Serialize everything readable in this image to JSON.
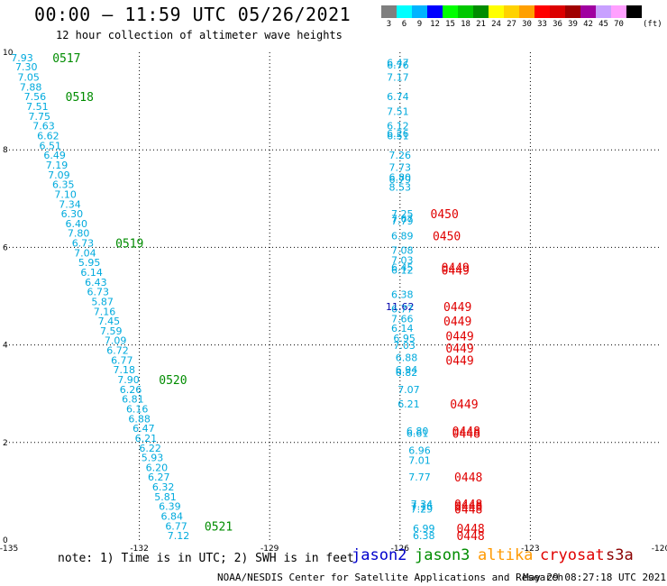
{
  "header": {
    "title": "00:00 – 11:59 UTC 05/26/2021",
    "subtitle": "12 hour collection of altimeter wave heights"
  },
  "legend": {
    "unit": "(ft)",
    "swatches": [
      {
        "color": "#7f7f7f",
        "label": "3"
      },
      {
        "color": "#00ffff",
        "label": "6"
      },
      {
        "color": "#00b4ff",
        "label": "9"
      },
      {
        "color": "#0000ff",
        "label": "12"
      },
      {
        "color": "#00ff00",
        "label": "15"
      },
      {
        "color": "#00c800",
        "label": "18"
      },
      {
        "color": "#008c00",
        "label": "21"
      },
      {
        "color": "#ffff00",
        "label": "24"
      },
      {
        "color": "#ffd200",
        "label": "27"
      },
      {
        "color": "#ffa000",
        "label": "30"
      },
      {
        "color": "#ff0000",
        "label": "33"
      },
      {
        "color": "#dc0000",
        "label": "36"
      },
      {
        "color": "#a00000",
        "label": "39"
      },
      {
        "color": "#a000a0",
        "label": "42"
      },
      {
        "color": "#c8a0ff",
        "label": "45"
      },
      {
        "color": "#ffa0ff",
        "label": "70"
      },
      {
        "color": "#000000",
        "label": ""
      }
    ]
  },
  "map": {
    "lon_range": [
      -135,
      -120
    ],
    "lat_range": [
      0,
      10
    ],
    "x_ticks": [
      -135,
      -132,
      -129,
      -126,
      -123,
      -120
    ],
    "y_ticks": [
      0,
      2,
      4,
      6,
      8,
      10
    ],
    "colors": {
      "jason3": "#008c00",
      "cryosat": "#e00000",
      "value": "#00aadd",
      "value_dark": "#0000aa"
    }
  },
  "track_a": {
    "satellite": "jason3",
    "values": [
      {
        "lon": -134.7,
        "lat": 9.89,
        "text": "7.93"
      },
      {
        "lon": -134.6,
        "lat": 9.7,
        "text": "7.30"
      },
      {
        "lon": -134.55,
        "lat": 9.49,
        "text": "7.05"
      },
      {
        "lon": -134.5,
        "lat": 9.29,
        "text": "7.88"
      },
      {
        "lon": -134.4,
        "lat": 9.09,
        "text": "7.56"
      },
      {
        "lon": -134.35,
        "lat": 8.89,
        "text": "7.51"
      },
      {
        "lon": -134.3,
        "lat": 8.69,
        "text": "7.75"
      },
      {
        "lon": -134.2,
        "lat": 8.49,
        "text": "7.63"
      },
      {
        "lon": -134.1,
        "lat": 8.29,
        "text": "6.62"
      },
      {
        "lon": -134.05,
        "lat": 8.09,
        "text": "6.51"
      },
      {
        "lon": -133.95,
        "lat": 7.89,
        "text": "6.49"
      },
      {
        "lon": -133.9,
        "lat": 7.69,
        "text": "7.19"
      },
      {
        "lon": -133.85,
        "lat": 7.49,
        "text": "7.09"
      },
      {
        "lon": -133.75,
        "lat": 7.29,
        "text": "6.35"
      },
      {
        "lon": -133.7,
        "lat": 7.09,
        "text": "7.10"
      },
      {
        "lon": -133.6,
        "lat": 6.89,
        "text": "7.34"
      },
      {
        "lon": -133.55,
        "lat": 6.69,
        "text": "6.30"
      },
      {
        "lon": -133.45,
        "lat": 6.49,
        "text": "6.40"
      },
      {
        "lon": -133.4,
        "lat": 6.29,
        "text": "7.80"
      },
      {
        "lon": -133.3,
        "lat": 6.09,
        "text": "6.73"
      },
      {
        "lon": -133.25,
        "lat": 5.89,
        "text": "7.04"
      },
      {
        "lon": -133.15,
        "lat": 5.69,
        "text": "5.95"
      },
      {
        "lon": -133.1,
        "lat": 5.49,
        "text": "6.14"
      },
      {
        "lon": -133.0,
        "lat": 5.29,
        "text": "6.43"
      },
      {
        "lon": -132.95,
        "lat": 5.09,
        "text": "6.73"
      },
      {
        "lon": -132.85,
        "lat": 4.89,
        "text": "5.87"
      },
      {
        "lon": -132.8,
        "lat": 4.69,
        "text": "7.16"
      },
      {
        "lon": -132.7,
        "lat": 4.49,
        "text": "7.45"
      },
      {
        "lon": -132.65,
        "lat": 4.29,
        "text": "7.59"
      },
      {
        "lon": -132.55,
        "lat": 4.09,
        "text": "7.09"
      },
      {
        "lon": -132.5,
        "lat": 3.89,
        "text": "6.72"
      },
      {
        "lon": -132.4,
        "lat": 3.69,
        "text": "6.77"
      },
      {
        "lon": -132.35,
        "lat": 3.49,
        "text": "7.18"
      },
      {
        "lon": -132.25,
        "lat": 3.29,
        "text": "7.90"
      },
      {
        "lon": -132.2,
        "lat": 3.09,
        "text": "6.26"
      },
      {
        "lon": -132.15,
        "lat": 2.89,
        "text": "6.81"
      },
      {
        "lon": -132.05,
        "lat": 2.69,
        "text": "6.16"
      },
      {
        "lon": -132.0,
        "lat": 2.49,
        "text": "6.88"
      },
      {
        "lon": -131.9,
        "lat": 2.29,
        "text": "6.47"
      },
      {
        "lon": -131.85,
        "lat": 2.09,
        "text": "6.21"
      },
      {
        "lon": -131.75,
        "lat": 1.89,
        "text": "6.22"
      },
      {
        "lon": -131.7,
        "lat": 1.69,
        "text": "5.93"
      },
      {
        "lon": -131.6,
        "lat": 1.49,
        "text": "6.20"
      },
      {
        "lon": -131.55,
        "lat": 1.29,
        "text": "6.27"
      },
      {
        "lon": -131.45,
        "lat": 1.09,
        "text": "6.32"
      },
      {
        "lon": -131.4,
        "lat": 0.89,
        "text": "5.81"
      },
      {
        "lon": -131.3,
        "lat": 0.69,
        "text": "6.39"
      },
      {
        "lon": -131.25,
        "lat": 0.49,
        "text": "6.84"
      },
      {
        "lon": -131.15,
        "lat": 0.29,
        "text": "6.77"
      },
      {
        "lon": -131.1,
        "lat": 0.09,
        "text": "7.12"
      }
    ],
    "times": [
      {
        "lon": -134.0,
        "lat": 9.89,
        "text": "0517"
      },
      {
        "lon": -133.7,
        "lat": 9.09,
        "text": "0518"
      },
      {
        "lon": -132.55,
        "lat": 6.09,
        "text": "0519"
      },
      {
        "lon": -131.55,
        "lat": 3.29,
        "text": "0520"
      },
      {
        "lon": -130.5,
        "lat": 0.29,
        "text": "0521"
      }
    ]
  },
  "track_b": {
    "satellite": "cryosat",
    "values": [
      {
        "lon": -126.05,
        "lat": 9.79,
        "text": "6.47"
      },
      {
        "lon": -126.05,
        "lat": 9.74,
        "text": "6.76"
      },
      {
        "lon": -126.05,
        "lat": 9.49,
        "text": "7.17"
      },
      {
        "lon": -126.05,
        "lat": 9.09,
        "text": "6.74"
      },
      {
        "lon": -126.05,
        "lat": 8.79,
        "text": "7.51"
      },
      {
        "lon": -126.05,
        "lat": 8.49,
        "text": "6.12"
      },
      {
        "lon": -126.05,
        "lat": 8.34,
        "text": "6.26"
      },
      {
        "lon": -126.05,
        "lat": 8.29,
        "text": "6.51"
      },
      {
        "lon": -126.0,
        "lat": 7.89,
        "text": "7.26"
      },
      {
        "lon": -126.0,
        "lat": 7.64,
        "text": "7.73"
      },
      {
        "lon": -126.0,
        "lat": 7.44,
        "text": "6.80"
      },
      {
        "lon": -126.0,
        "lat": 7.39,
        "text": "6.79"
      },
      {
        "lon": -126.0,
        "lat": 7.24,
        "text": "8.53"
      },
      {
        "lon": -125.95,
        "lat": 6.69,
        "text": "7.25"
      },
      {
        "lon": -125.95,
        "lat": 6.59,
        "text": "7.67"
      },
      {
        "lon": -125.95,
        "lat": 6.54,
        "text": "7.79"
      },
      {
        "lon": -125.95,
        "lat": 6.24,
        "text": "6.89"
      },
      {
        "lon": -125.95,
        "lat": 5.94,
        "text": "7.08"
      },
      {
        "lon": -125.95,
        "lat": 5.74,
        "text": "7.03"
      },
      {
        "lon": -125.95,
        "lat": 5.59,
        "text": "6.45"
      },
      {
        "lon": -125.95,
        "lat": 5.54,
        "text": "6.12"
      },
      {
        "lon": -125.95,
        "lat": 5.04,
        "text": "6.38"
      },
      {
        "lon": -126.0,
        "lat": 4.79,
        "text": "11.62",
        "dark": true
      },
      {
        "lon": -125.95,
        "lat": 4.74,
        "text": "6.77"
      },
      {
        "lon": -125.95,
        "lat": 4.54,
        "text": "7.66"
      },
      {
        "lon": -125.95,
        "lat": 4.34,
        "text": "6.14"
      },
      {
        "lon": -125.9,
        "lat": 4.14,
        "text": "6.95"
      },
      {
        "lon": -125.9,
        "lat": 3.99,
        "text": "7.03"
      },
      {
        "lon": -125.85,
        "lat": 3.74,
        "text": "6.88"
      },
      {
        "lon": -125.85,
        "lat": 3.49,
        "text": "6.94"
      },
      {
        "lon": -125.85,
        "lat": 3.44,
        "text": "6.82"
      },
      {
        "lon": -125.8,
        "lat": 3.09,
        "text": "7.07"
      },
      {
        "lon": -125.8,
        "lat": 2.79,
        "text": "6.21"
      },
      {
        "lon": -125.6,
        "lat": 2.24,
        "text": "6.80"
      },
      {
        "lon": -125.6,
        "lat": 2.19,
        "text": "6.61"
      },
      {
        "lon": -125.55,
        "lat": 1.84,
        "text": "6.96"
      },
      {
        "lon": -125.55,
        "lat": 1.64,
        "text": "7.01"
      },
      {
        "lon": -125.55,
        "lat": 1.29,
        "text": "7.77"
      },
      {
        "lon": -125.5,
        "lat": 0.74,
        "text": "7.34"
      },
      {
        "lon": -125.5,
        "lat": 0.69,
        "text": "7.16"
      },
      {
        "lon": -125.5,
        "lat": 0.64,
        "text": "7.29"
      },
      {
        "lon": -125.45,
        "lat": 0.24,
        "text": "6.99"
      },
      {
        "lon": -125.45,
        "lat": 0.09,
        "text": "6.38"
      }
    ],
    "times": [
      {
        "lon": -125.3,
        "lat": 6.69,
        "text": "0450"
      },
      {
        "lon": -125.25,
        "lat": 6.24,
        "text": "0450"
      },
      {
        "lon": -125.05,
        "lat": 5.59,
        "text": "0449"
      },
      {
        "lon": -125.05,
        "lat": 5.54,
        "text": "0449"
      },
      {
        "lon": -125.0,
        "lat": 4.79,
        "text": "0449"
      },
      {
        "lon": -125.0,
        "lat": 4.49,
        "text": "0449"
      },
      {
        "lon": -124.95,
        "lat": 4.19,
        "text": "0449"
      },
      {
        "lon": -124.95,
        "lat": 3.94,
        "text": "0449"
      },
      {
        "lon": -124.95,
        "lat": 3.69,
        "text": "0449"
      },
      {
        "lon": -124.85,
        "lat": 2.79,
        "text": "0449"
      },
      {
        "lon": -124.8,
        "lat": 2.24,
        "text": "0448"
      },
      {
        "lon": -124.8,
        "lat": 2.19,
        "text": "0448"
      },
      {
        "lon": -124.75,
        "lat": 1.29,
        "text": "0448"
      },
      {
        "lon": -124.75,
        "lat": 0.74,
        "text": "0448"
      },
      {
        "lon": -124.75,
        "lat": 0.69,
        "text": "0448"
      },
      {
        "lon": -124.75,
        "lat": 0.64,
        "text": "0448"
      },
      {
        "lon": -124.7,
        "lat": 0.24,
        "text": "0448"
      },
      {
        "lon": -124.7,
        "lat": 0.09,
        "text": "0448"
      }
    ]
  },
  "footer": {
    "note": "note: 1) Time is in UTC; 2) SWH is in feet",
    "satellites": [
      {
        "name": "jason2",
        "color": "#0000cc"
      },
      {
        "name": "jason3",
        "color": "#008c00"
      },
      {
        "name": "altika",
        "color": "#ff9900"
      },
      {
        "name": "cryosat",
        "color": "#e00000"
      },
      {
        "name": "s3a",
        "color": "#8b0000"
      }
    ],
    "credit": "NOAA/NESDIS Center for Satellite Applications and Research",
    "timestamp": "May 29 08:27:18 UTC 2021"
  }
}
